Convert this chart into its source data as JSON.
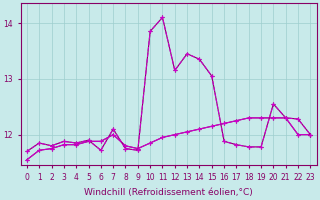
{
  "bg_color": "#c8eaea",
  "grid_color": "#9ecece",
  "xlabel": "Windchill (Refroidissement éolien,°C)",
  "xlabel_fontsize": 6.5,
  "tick_fontsize": 5.5,
  "ylim": [
    11.45,
    14.35
  ],
  "yticks": [
    12,
    13,
    14
  ],
  "xlim": [
    -0.5,
    23.5
  ],
  "series1": [
    11.7,
    11.85,
    11.8,
    11.88,
    11.85,
    11.9,
    11.72,
    12.1,
    11.75,
    11.72,
    13.85,
    14.1,
    13.15,
    13.45,
    13.35,
    13.05,
    11.88,
    11.82,
    11.78,
    11.78,
    12.55,
    12.3,
    12.28,
    12.0
  ],
  "series2": [
    11.7,
    11.85,
    11.8,
    11.88,
    11.85,
    11.9,
    11.72,
    12.1,
    11.75,
    11.72,
    13.85,
    14.1,
    13.15,
    13.45,
    13.35,
    13.05,
    11.88,
    11.82,
    11.78,
    11.78,
    12.55,
    12.3,
    12.28,
    12.0
  ],
  "series3": [
    11.55,
    11.72,
    11.75,
    11.82,
    11.82,
    11.88,
    11.88,
    12.0,
    11.8,
    11.75,
    11.85,
    11.95,
    12.0,
    12.05,
    12.1,
    12.15,
    12.2,
    12.25,
    12.3,
    12.3,
    12.3,
    12.3,
    12.0,
    12.0
  ],
  "series4": [
    11.55,
    11.72,
    11.75,
    11.82,
    11.82,
    11.88,
    11.88,
    12.0,
    11.8,
    11.75,
    11.85,
    11.95,
    12.0,
    12.05,
    12.1,
    12.15,
    12.2,
    12.25,
    12.3,
    12.3,
    12.3,
    12.3,
    12.0,
    12.0
  ],
  "color_bright": "#cc00cc",
  "color_dark": "#880066",
  "x_labels": [
    "0",
    "1",
    "2",
    "3",
    "4",
    "5",
    "6",
    "7",
    "8",
    "9",
    "10",
    "11",
    "12",
    "13",
    "14",
    "15",
    "16",
    "17",
    "18",
    "19",
    "20",
    "21",
    "22",
    "23"
  ]
}
